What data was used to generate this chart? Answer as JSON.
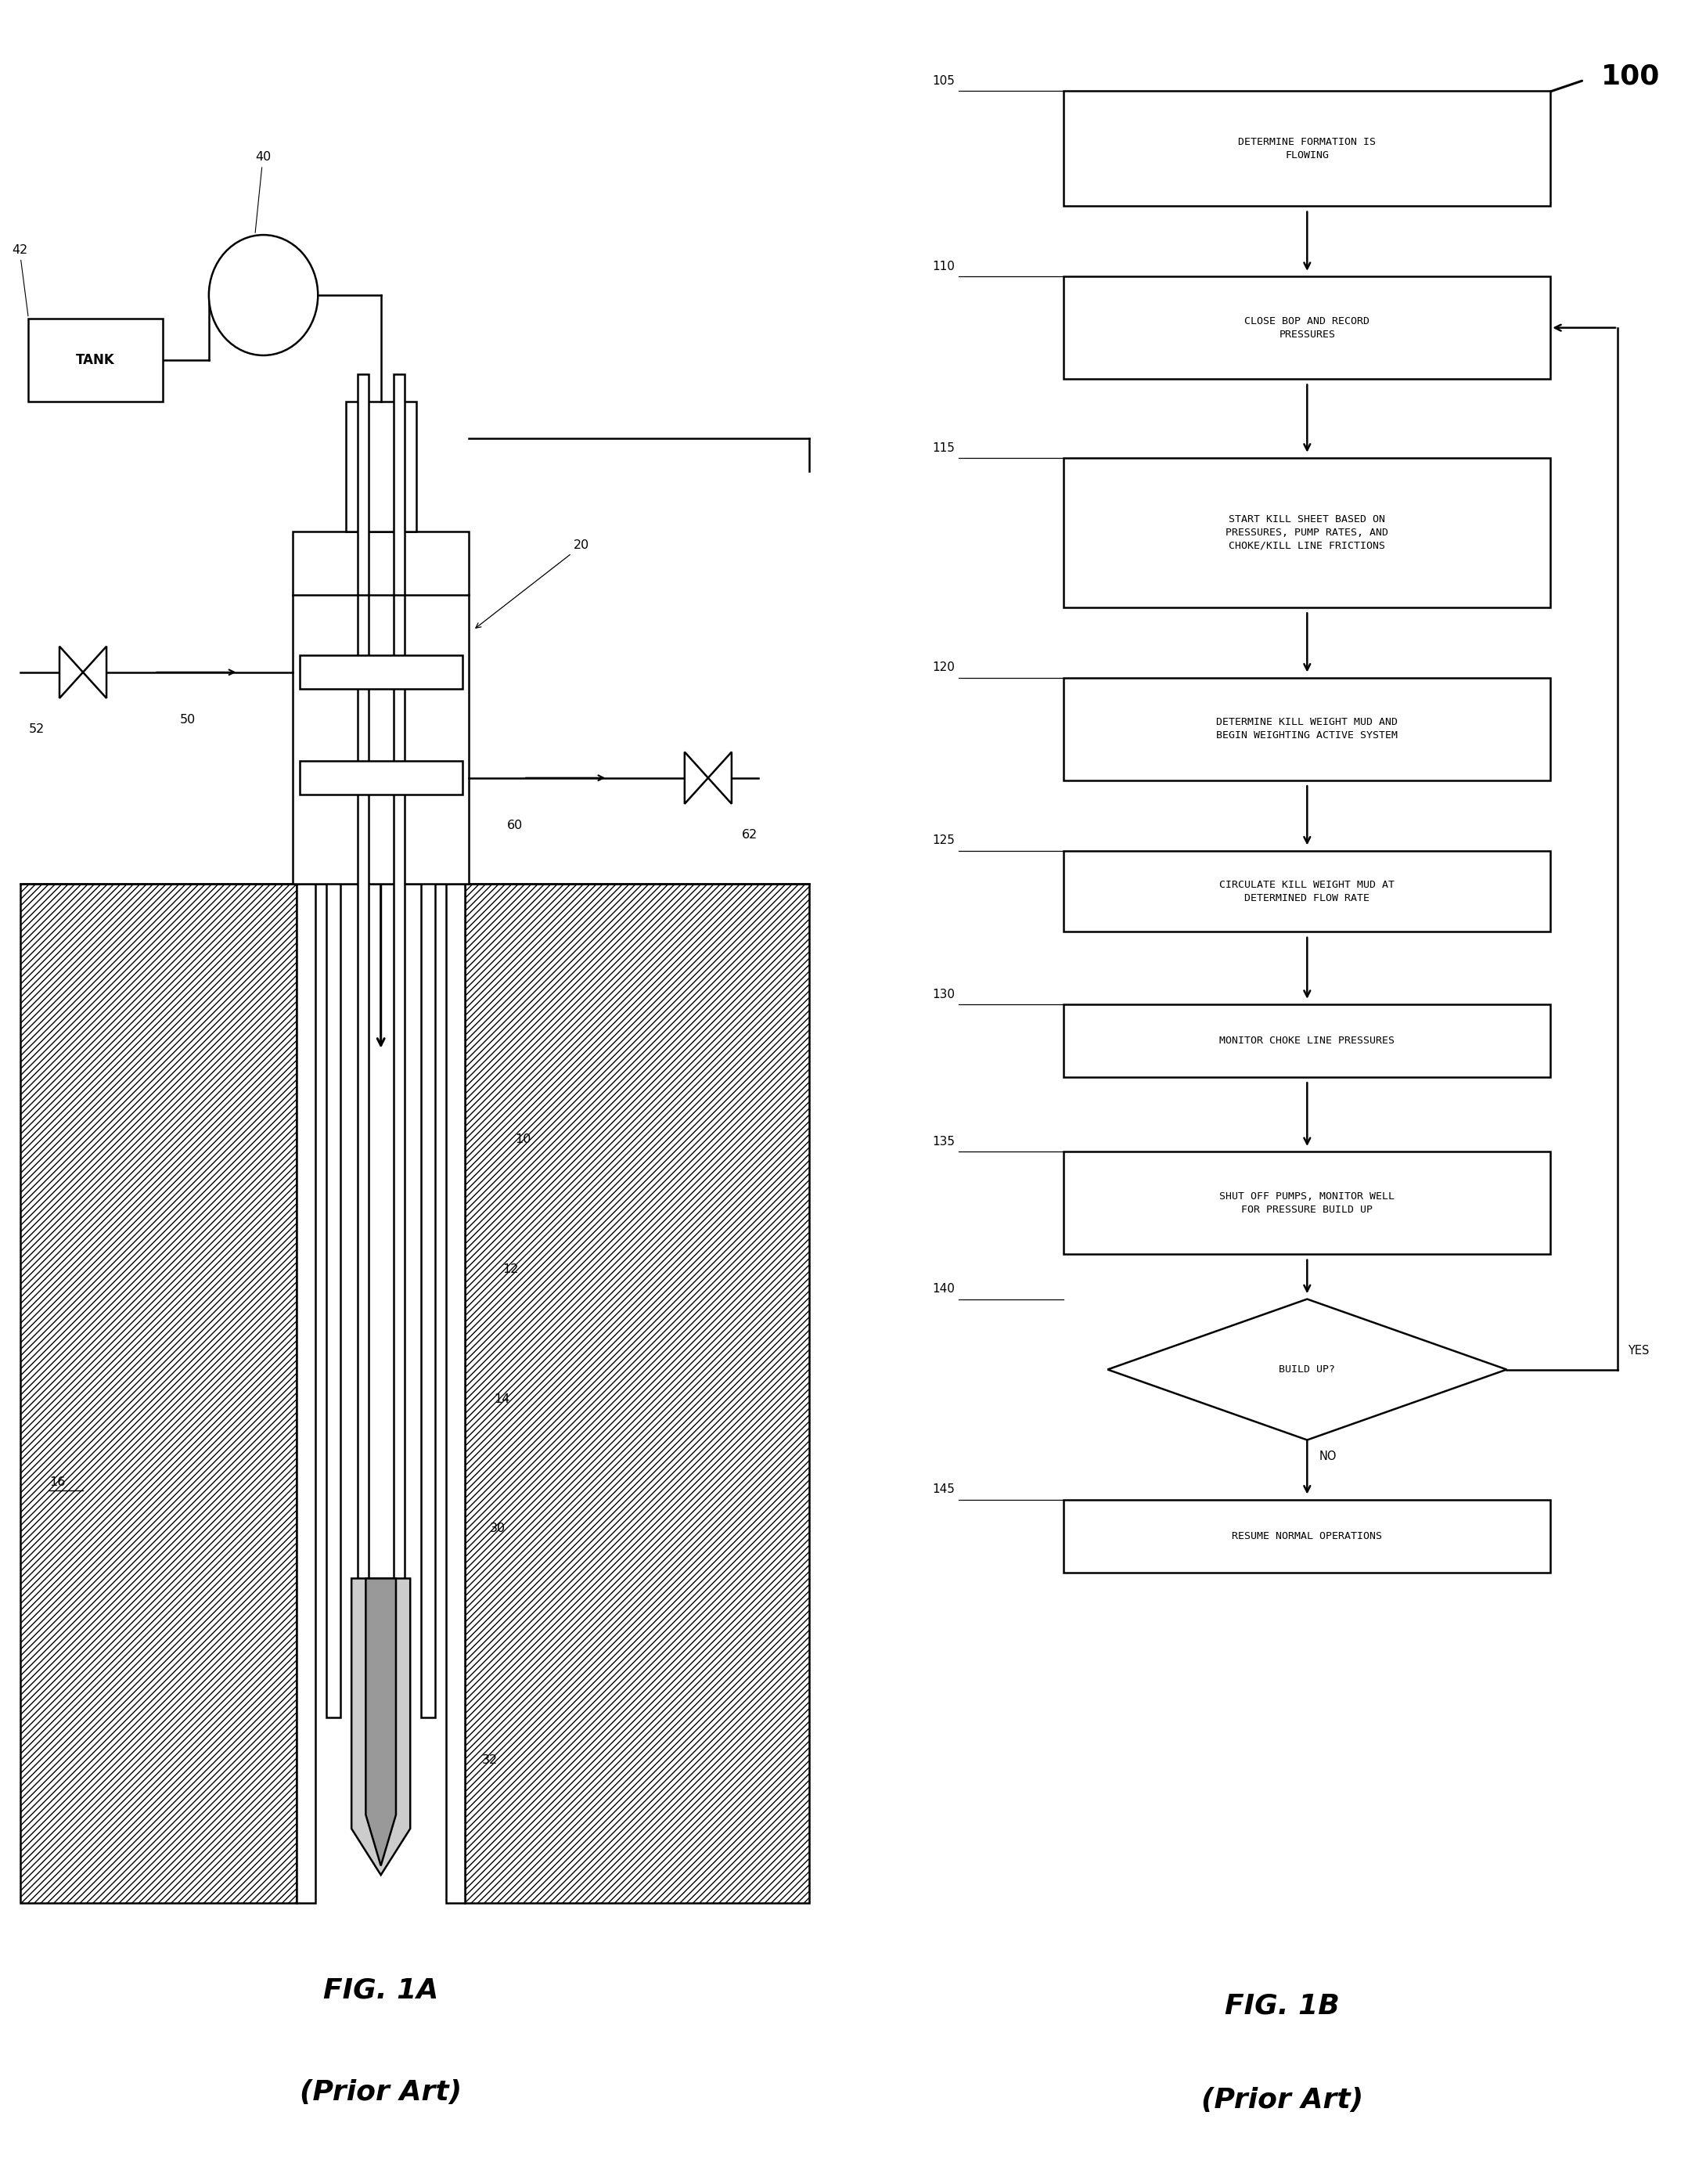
{
  "bg_color": "#ffffff",
  "fig1a_caption": "FIG. 1A",
  "fig1a_subcaption": "(Prior Art)",
  "fig1b_caption": "FIG. 1B",
  "fig1b_subcaption": "(Prior Art)",
  "flowchart_label": "100",
  "flowchart_steps": [
    {
      "id": 105,
      "type": "rect",
      "text": "DETERMINE FORMATION IS\nFLOWING"
    },
    {
      "id": 110,
      "type": "rect",
      "text": "CLOSE BOP AND RECORD\nPRESSURES"
    },
    {
      "id": 115,
      "type": "rect",
      "text": "START KILL SHEET BASED ON\nPRESSURES, PUMP RATES, AND\nCHOKE/KILL LINE FRICTIONS"
    },
    {
      "id": 120,
      "type": "rect",
      "text": "DETERMINE KILL WEIGHT MUD AND\nBEGIN WEIGHTING ACTIVE SYSTEM"
    },
    {
      "id": 125,
      "type": "rect",
      "text": "CIRCULATE KILL WEIGHT MUD AT\nDETERMINED FLOW RATE"
    },
    {
      "id": 130,
      "type": "rect",
      "text": "MONITOR CHOKE LINE PRESSURES"
    },
    {
      "id": 135,
      "type": "rect",
      "text": "SHUT OFF PUMPS, MONITOR WELL\nFOR PRESSURE BUILD UP"
    },
    {
      "id": 140,
      "type": "diamond",
      "text": "BUILD UP?"
    },
    {
      "id": 145,
      "type": "rect",
      "text": "RESUME NORMAL OPERATIONS"
    }
  ]
}
